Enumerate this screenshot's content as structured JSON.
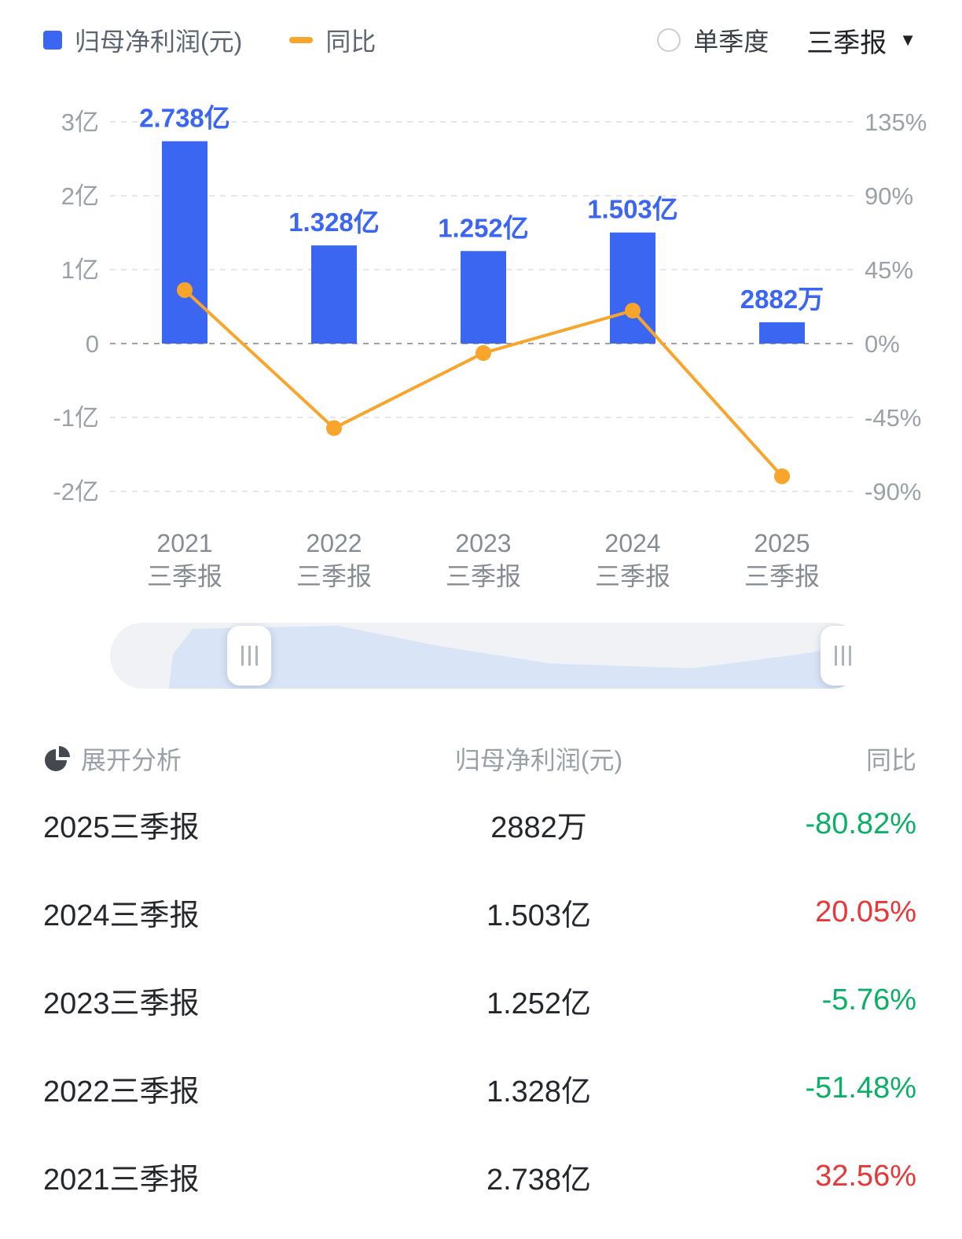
{
  "legend": {
    "bar_label": "归母净利润(元)",
    "line_label": "同比"
  },
  "controls": {
    "radio_label": "单季度",
    "dropdown_value": "三季报",
    "caret_icon": "▼"
  },
  "colors": {
    "bar": "#3a66f1",
    "line": "#f9a42b",
    "up": "#e83737",
    "down": "#0bb066",
    "axis_text": "#9aa1a8",
    "x_text": "#868c94",
    "grid": "#e3e6ea",
    "zero_line": "#9aa2ac"
  },
  "chart_data": {
    "type": "bar+line",
    "title": "归母净利润(元) 同比",
    "categories": [
      [
        "2021",
        "三季报"
      ],
      [
        "2022",
        "三季报"
      ],
      [
        "2023",
        "三季报"
      ],
      [
        "2024",
        "三季报"
      ],
      [
        "2025",
        "三季报"
      ]
    ],
    "bar_series": {
      "name": "归母净利润(元)",
      "values_yi": [
        2.738,
        1.328,
        1.252,
        1.503,
        0.2882
      ],
      "labels": [
        "2.738亿",
        "1.328亿",
        "1.252亿",
        "1.503亿",
        "2882万"
      ]
    },
    "line_series": {
      "name": "同比",
      "values_pct": [
        32.56,
        -51.48,
        -5.76,
        20.05,
        -80.82
      ]
    },
    "left_axis": {
      "ticks": [
        "3亿",
        "2亿",
        "1亿",
        "0",
        "-1亿",
        "-2亿"
      ],
      "max": 3,
      "min": -2,
      "unit": "亿"
    },
    "right_axis": {
      "ticks": [
        "135%",
        "90%",
        "45%",
        "0%",
        "-45%",
        "-90%"
      ],
      "max": 135,
      "min": -90,
      "unit": "%"
    },
    "grid": "dashed",
    "legend_position": "top-left"
  },
  "slider": {
    "left_handle_icon": "drag-handle",
    "right_handle_icon": "drag-handle"
  },
  "table": {
    "header": {
      "expand_label": "展开分析",
      "value_col": "归母净利润(元)",
      "change_col": "同比"
    },
    "rows": [
      {
        "period": "2025三季报",
        "value": "2882万",
        "change": "-80.82%"
      },
      {
        "period": "2024三季报",
        "value": "1.503亿",
        "change": "20.05%"
      },
      {
        "period": "2023三季报",
        "value": "1.252亿",
        "change": "-5.76%"
      },
      {
        "period": "2022三季报",
        "value": "1.328亿",
        "change": "-51.48%"
      },
      {
        "period": "2021三季报",
        "value": "2.738亿",
        "change": "32.56%"
      }
    ]
  }
}
